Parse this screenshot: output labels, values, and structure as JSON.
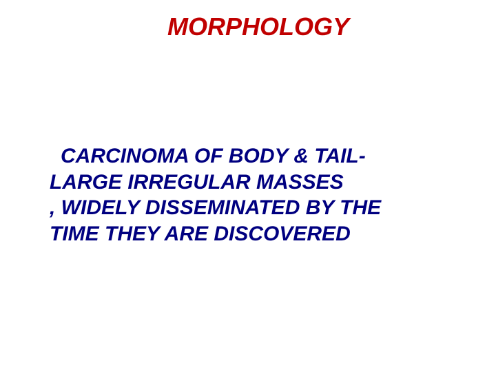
{
  "slide": {
    "title": "MORPHOLOGY",
    "body_line1": "CARCINOMA OF BODY & TAIL-",
    "body_line2": "LARGE IRREGULAR MASSES",
    "body_line3": ", WIDELY DISSEMINATED BY  THE",
    "body_line4": "TIME THEY ARE DISCOVERED",
    "title_color": "#c00000",
    "body_color": "#000080",
    "background_color": "#ffffff",
    "title_fontsize": 36,
    "body_fontsize": 30,
    "font_weight": "bold",
    "font_style": "italic"
  }
}
